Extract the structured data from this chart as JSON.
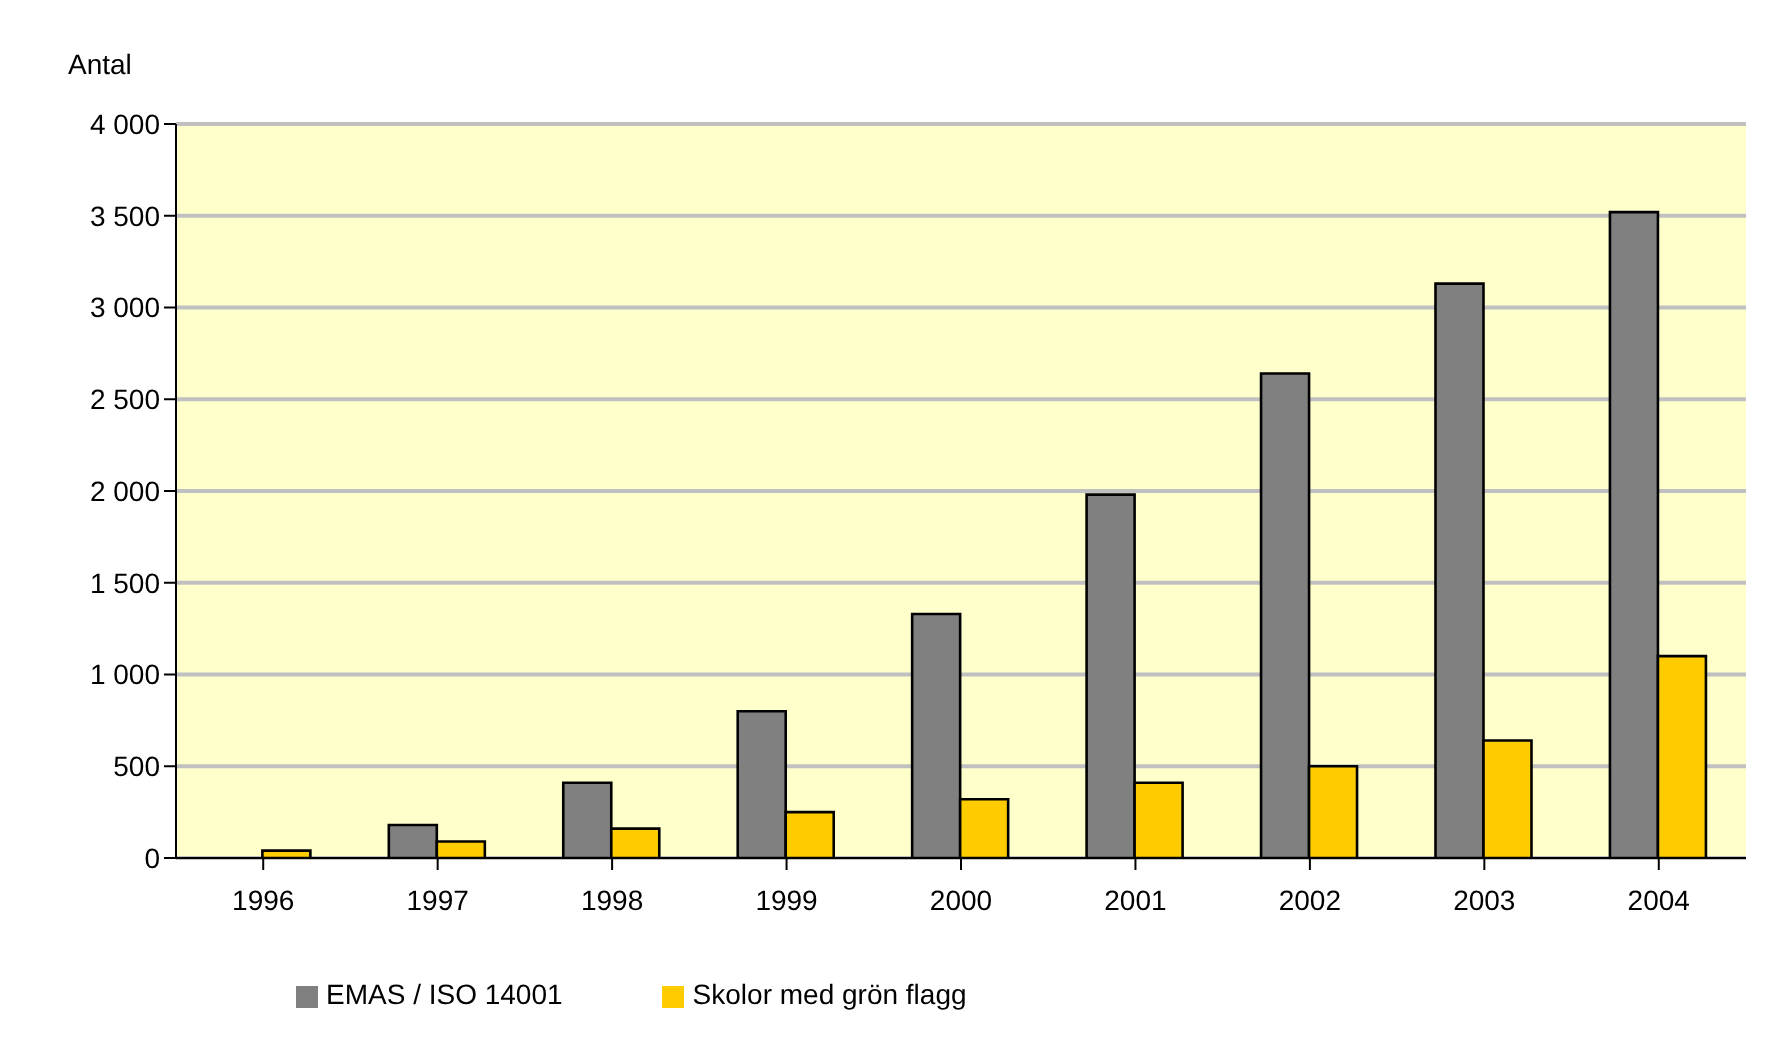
{
  "chart_data": {
    "type": "bar",
    "ylabel": "Antal",
    "categories": [
      "1996",
      "1997",
      "1998",
      "1999",
      "2000",
      "2001",
      "2002",
      "2003",
      "2004"
    ],
    "series": [
      {
        "name": "EMAS / ISO 14001",
        "color": "#808080",
        "values": [
          0,
          180,
          410,
          800,
          1330,
          1980,
          2640,
          3130,
          3520
        ]
      },
      {
        "name": "Skolor med grön flagg",
        "color": "#ffcc00",
        "values": [
          40,
          90,
          160,
          250,
          320,
          410,
          500,
          640,
          1100
        ]
      }
    ],
    "ylim": [
      0,
      4000
    ],
    "yticks": [
      0,
      500,
      {
        "value": 1000,
        "label": "1 000"
      },
      {
        "value": 1500,
        "label": "1 500"
      },
      {
        "value": 2000,
        "label": "2 000"
      },
      {
        "value": 2500,
        "label": "2 500"
      },
      {
        "value": 3000,
        "label": "3 000"
      },
      {
        "value": 3500,
        "label": "3 500"
      },
      {
        "value": 4000,
        "label": "4 000"
      }
    ],
    "grid": "y",
    "legend": "bottom left"
  }
}
